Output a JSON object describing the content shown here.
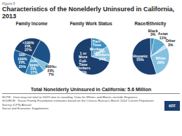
{
  "title": "Characteristics of the Nonelderly Uninsured in California, 2013",
  "annotations": [
    "Figure 5",
    "Total Nonelderly Uninsured in California: 5.6 Million",
    "NOTE:  Data may not total to 100% due to rounding. Data for Whites and Blacks exclude Hispanics.",
    "SOURCE:  Kaiser Family Foundation estimates based on the Census Bureau's March 2014 Current Population Survey (CPS) Annual\nSocial and Economic Supplement.",
    "KFF"
  ],
  "chart_data": [
    {
      "type": "pie",
      "title": "Family Income",
      "categories": [
        "<100%\nFPL",
        "100-\n199%\nFPL",
        "200-\n399%\nFPL",
        "400%+\nFPL",
        null
      ],
      "values": [
        27,
        25,
        17,
        7,
        24
      ],
      "value_labels": [
        "27%",
        "25%",
        "17%",
        "7%",
        null
      ],
      "colors": [
        "#1b3f6e",
        "#1e6098",
        "#3a8fc1",
        "#85c1e0",
        "#1b5286"
      ],
      "data_labels": true
    },
    {
      "type": "pie",
      "title": "Family Work Status",
      "categories": [
        "1 or\nMore\nFull-\nTime\nWorkers",
        "No\nWorkers",
        "Part-\nTime\nWorkers"
      ],
      "values": [
        71,
        14,
        16
      ],
      "value_labels": [
        "71%",
        "14%",
        "16%"
      ],
      "colors": [
        "#1b3f6e",
        "#85c1e0",
        "#3a8fc1"
      ],
      "data_labels": true
    },
    {
      "type": "pie",
      "title": "Race/Ethnicity",
      "categories": [
        "Hispanic",
        "White",
        "Other",
        "Asian",
        "Black"
      ],
      "values": [
        55,
        28,
        3,
        11,
        3
      ],
      "value_labels": [
        "55%",
        "28%",
        "3%",
        "11%",
        "3%"
      ],
      "colors": [
        "#1b3f6e",
        "#85c1e0",
        "#c8dff0",
        "#5eaad0",
        "#3a8fc1"
      ],
      "data_labels": true
    }
  ]
}
